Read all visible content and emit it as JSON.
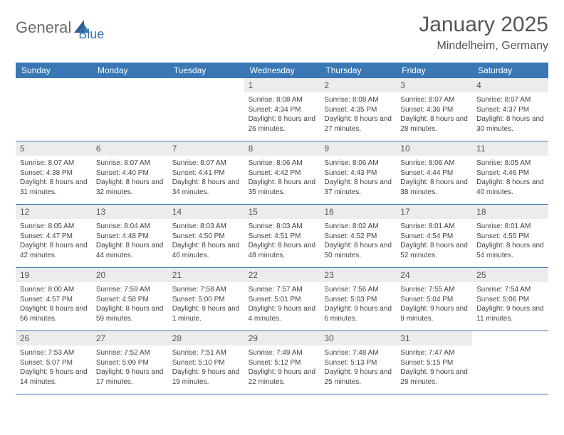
{
  "logo": {
    "text1": "General",
    "text2": "Blue"
  },
  "title": "January 2025",
  "location": "Mindelheim, Germany",
  "colors": {
    "brand_blue": "#3a78b5",
    "header_bg": "#3a78b5",
    "day_num_bg": "#ececec",
    "text": "#444444",
    "background": "#ffffff"
  },
  "weekdays": [
    "Sunday",
    "Monday",
    "Tuesday",
    "Wednesday",
    "Thursday",
    "Friday",
    "Saturday"
  ],
  "weeks": [
    [
      {
        "num": "",
        "sunrise": "",
        "sunset": "",
        "daylight": ""
      },
      {
        "num": "",
        "sunrise": "",
        "sunset": "",
        "daylight": ""
      },
      {
        "num": "",
        "sunrise": "",
        "sunset": "",
        "daylight": ""
      },
      {
        "num": "1",
        "sunrise": "Sunrise: 8:08 AM",
        "sunset": "Sunset: 4:34 PM",
        "daylight": "Daylight: 8 hours and 26 minutes."
      },
      {
        "num": "2",
        "sunrise": "Sunrise: 8:08 AM",
        "sunset": "Sunset: 4:35 PM",
        "daylight": "Daylight: 8 hours and 27 minutes."
      },
      {
        "num": "3",
        "sunrise": "Sunrise: 8:07 AM",
        "sunset": "Sunset: 4:36 PM",
        "daylight": "Daylight: 8 hours and 28 minutes."
      },
      {
        "num": "4",
        "sunrise": "Sunrise: 8:07 AM",
        "sunset": "Sunset: 4:37 PM",
        "daylight": "Daylight: 8 hours and 30 minutes."
      }
    ],
    [
      {
        "num": "5",
        "sunrise": "Sunrise: 8:07 AM",
        "sunset": "Sunset: 4:38 PM",
        "daylight": "Daylight: 8 hours and 31 minutes."
      },
      {
        "num": "6",
        "sunrise": "Sunrise: 8:07 AM",
        "sunset": "Sunset: 4:40 PM",
        "daylight": "Daylight: 8 hours and 32 minutes."
      },
      {
        "num": "7",
        "sunrise": "Sunrise: 8:07 AM",
        "sunset": "Sunset: 4:41 PM",
        "daylight": "Daylight: 8 hours and 34 minutes."
      },
      {
        "num": "8",
        "sunrise": "Sunrise: 8:06 AM",
        "sunset": "Sunset: 4:42 PM",
        "daylight": "Daylight: 8 hours and 35 minutes."
      },
      {
        "num": "9",
        "sunrise": "Sunrise: 8:06 AM",
        "sunset": "Sunset: 4:43 PM",
        "daylight": "Daylight: 8 hours and 37 minutes."
      },
      {
        "num": "10",
        "sunrise": "Sunrise: 8:06 AM",
        "sunset": "Sunset: 4:44 PM",
        "daylight": "Daylight: 8 hours and 38 minutes."
      },
      {
        "num": "11",
        "sunrise": "Sunrise: 8:05 AM",
        "sunset": "Sunset: 4:46 PM",
        "daylight": "Daylight: 8 hours and 40 minutes."
      }
    ],
    [
      {
        "num": "12",
        "sunrise": "Sunrise: 8:05 AM",
        "sunset": "Sunset: 4:47 PM",
        "daylight": "Daylight: 8 hours and 42 minutes."
      },
      {
        "num": "13",
        "sunrise": "Sunrise: 8:04 AM",
        "sunset": "Sunset: 4:48 PM",
        "daylight": "Daylight: 8 hours and 44 minutes."
      },
      {
        "num": "14",
        "sunrise": "Sunrise: 8:03 AM",
        "sunset": "Sunset: 4:50 PM",
        "daylight": "Daylight: 8 hours and 46 minutes."
      },
      {
        "num": "15",
        "sunrise": "Sunrise: 8:03 AM",
        "sunset": "Sunset: 4:51 PM",
        "daylight": "Daylight: 8 hours and 48 minutes."
      },
      {
        "num": "16",
        "sunrise": "Sunrise: 8:02 AM",
        "sunset": "Sunset: 4:52 PM",
        "daylight": "Daylight: 8 hours and 50 minutes."
      },
      {
        "num": "17",
        "sunrise": "Sunrise: 8:01 AM",
        "sunset": "Sunset: 4:54 PM",
        "daylight": "Daylight: 8 hours and 52 minutes."
      },
      {
        "num": "18",
        "sunrise": "Sunrise: 8:01 AM",
        "sunset": "Sunset: 4:55 PM",
        "daylight": "Daylight: 8 hours and 54 minutes."
      }
    ],
    [
      {
        "num": "19",
        "sunrise": "Sunrise: 8:00 AM",
        "sunset": "Sunset: 4:57 PM",
        "daylight": "Daylight: 8 hours and 56 minutes."
      },
      {
        "num": "20",
        "sunrise": "Sunrise: 7:59 AM",
        "sunset": "Sunset: 4:58 PM",
        "daylight": "Daylight: 8 hours and 59 minutes."
      },
      {
        "num": "21",
        "sunrise": "Sunrise: 7:58 AM",
        "sunset": "Sunset: 5:00 PM",
        "daylight": "Daylight: 9 hours and 1 minute."
      },
      {
        "num": "22",
        "sunrise": "Sunrise: 7:57 AM",
        "sunset": "Sunset: 5:01 PM",
        "daylight": "Daylight: 9 hours and 4 minutes."
      },
      {
        "num": "23",
        "sunrise": "Sunrise: 7:56 AM",
        "sunset": "Sunset: 5:03 PM",
        "daylight": "Daylight: 9 hours and 6 minutes."
      },
      {
        "num": "24",
        "sunrise": "Sunrise: 7:55 AM",
        "sunset": "Sunset: 5:04 PM",
        "daylight": "Daylight: 9 hours and 9 minutes."
      },
      {
        "num": "25",
        "sunrise": "Sunrise: 7:54 AM",
        "sunset": "Sunset: 5:06 PM",
        "daylight": "Daylight: 9 hours and 11 minutes."
      }
    ],
    [
      {
        "num": "26",
        "sunrise": "Sunrise: 7:53 AM",
        "sunset": "Sunset: 5:07 PM",
        "daylight": "Daylight: 9 hours and 14 minutes."
      },
      {
        "num": "27",
        "sunrise": "Sunrise: 7:52 AM",
        "sunset": "Sunset: 5:09 PM",
        "daylight": "Daylight: 9 hours and 17 minutes."
      },
      {
        "num": "28",
        "sunrise": "Sunrise: 7:51 AM",
        "sunset": "Sunset: 5:10 PM",
        "daylight": "Daylight: 9 hours and 19 minutes."
      },
      {
        "num": "29",
        "sunrise": "Sunrise: 7:49 AM",
        "sunset": "Sunset: 5:12 PM",
        "daylight": "Daylight: 9 hours and 22 minutes."
      },
      {
        "num": "30",
        "sunrise": "Sunrise: 7:48 AM",
        "sunset": "Sunset: 5:13 PM",
        "daylight": "Daylight: 9 hours and 25 minutes."
      },
      {
        "num": "31",
        "sunrise": "Sunrise: 7:47 AM",
        "sunset": "Sunset: 5:15 PM",
        "daylight": "Daylight: 9 hours and 28 minutes."
      },
      {
        "num": "",
        "sunrise": "",
        "sunset": "",
        "daylight": ""
      }
    ]
  ]
}
